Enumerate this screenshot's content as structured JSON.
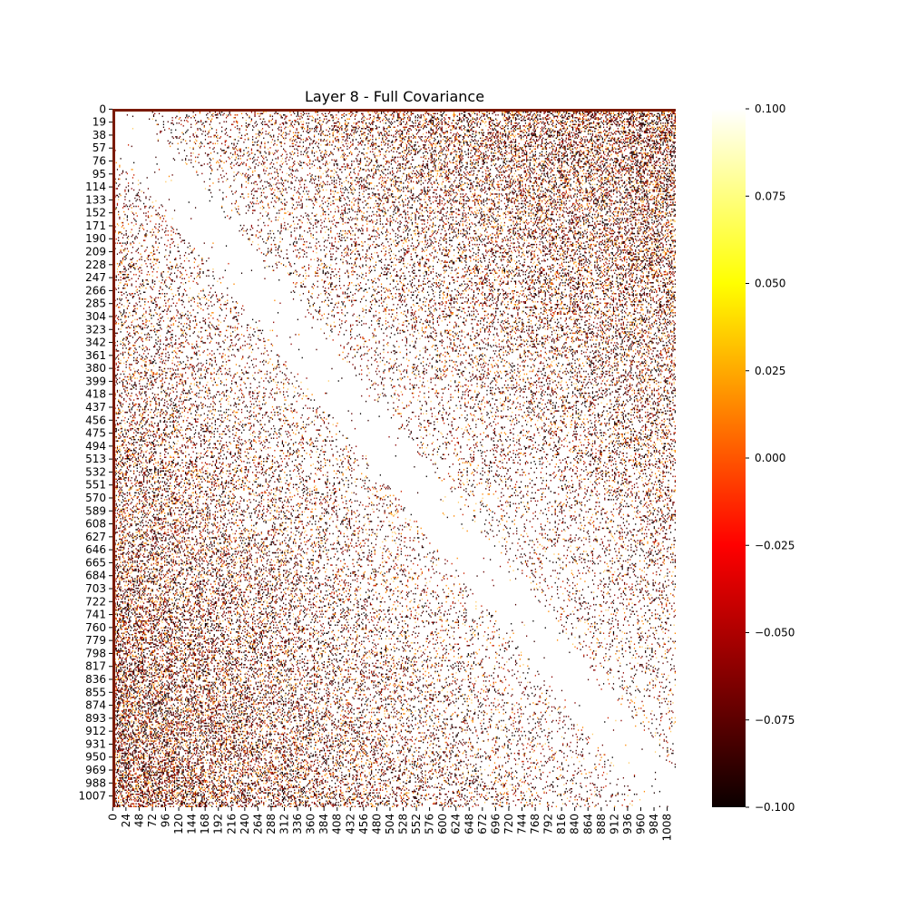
{
  "chart_data": {
    "type": "heatmap",
    "title": "Layer 8 - Full Covariance",
    "xlabel": "",
    "ylabel": "",
    "matrix_size": 1024,
    "x_tick_labels": [
      "0",
      "24",
      "48",
      "72",
      "96",
      "120",
      "144",
      "168",
      "192",
      "216",
      "240",
      "264",
      "288",
      "312",
      "336",
      "360",
      "384",
      "408",
      "432",
      "456",
      "480",
      "504",
      "528",
      "552",
      "576",
      "600",
      "624",
      "648",
      "672",
      "696",
      "720",
      "744",
      "768",
      "792",
      "816",
      "840",
      "864",
      "888",
      "912",
      "936",
      "960",
      "984",
      "1008"
    ],
    "y_tick_labels": [
      "0",
      "19",
      "38",
      "57",
      "76",
      "95",
      "114",
      "133",
      "152",
      "171",
      "190",
      "209",
      "228",
      "247",
      "266",
      "285",
      "304",
      "323",
      "342",
      "361",
      "380",
      "399",
      "418",
      "437",
      "456",
      "475",
      "494",
      "513",
      "532",
      "551",
      "570",
      "589",
      "608",
      "627",
      "646",
      "665",
      "684",
      "703",
      "722",
      "741",
      "760",
      "779",
      "798",
      "817",
      "836",
      "855",
      "874",
      "893",
      "912",
      "931",
      "950",
      "969",
      "988",
      "1007"
    ],
    "colorbar": {
      "vmin": -0.1,
      "vmax": 0.1,
      "colormap": "hot",
      "tick_labels": [
        "0.100",
        "0.075",
        "0.050",
        "0.025",
        "0.000",
        "−0.025",
        "−0.050",
        "−0.075",
        "−0.100"
      ],
      "tick_values": [
        0.1,
        0.075,
        0.05,
        0.025,
        0.0,
        -0.025,
        -0.05,
        -0.075,
        -0.1
      ]
    },
    "grid": false,
    "description_pattern": "mostly saturated white (values >= 0.1) with sparse dark negative speckles concentrated in the upper-right and lower-left blocks, white band along diagonal, dark first row and column"
  }
}
